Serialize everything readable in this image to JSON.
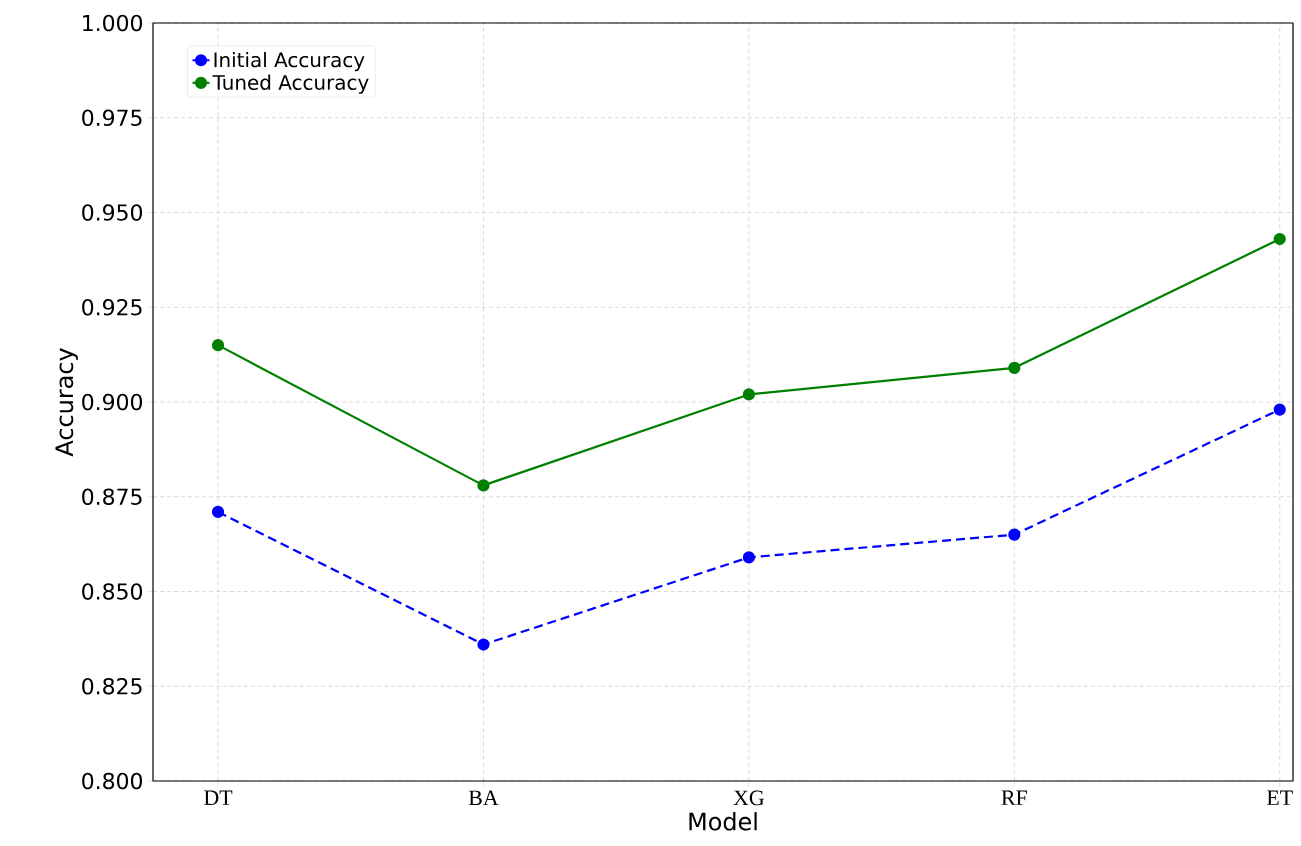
{
  "chart_data": {
    "type": "line",
    "xlabel": "Model",
    "ylabel": "Accuracy",
    "categories": [
      "DT",
      "BA",
      "XG",
      "RF",
      "ET"
    ],
    "series": [
      {
        "name": "Initial Accuracy",
        "color": "#0000ff",
        "line_style": "dashed",
        "values": [
          0.871,
          0.836,
          0.859,
          0.865,
          0.898
        ]
      },
      {
        "name": "Tuned Accuracy",
        "color": "#008000",
        "line_style": "solid",
        "values": [
          0.915,
          0.878,
          0.902,
          0.909,
          0.943
        ]
      }
    ],
    "ylim": [
      0.8,
      1.0
    ],
    "yticks": [
      {
        "value": 0.8,
        "label": "0.800"
      },
      {
        "value": 0.825,
        "label": "0.825"
      },
      {
        "value": 0.85,
        "label": "0.850"
      },
      {
        "value": 0.875,
        "label": "0.875"
      },
      {
        "value": 0.9,
        "label": "0.900"
      },
      {
        "value": 0.925,
        "label": "0.925"
      },
      {
        "value": 0.95,
        "label": "0.950"
      },
      {
        "value": 0.975,
        "label": "0.975"
      },
      {
        "value": 1.0,
        "label": "1.000"
      }
    ],
    "grid": true,
    "legend": "top left",
    "marker": "circle"
  }
}
